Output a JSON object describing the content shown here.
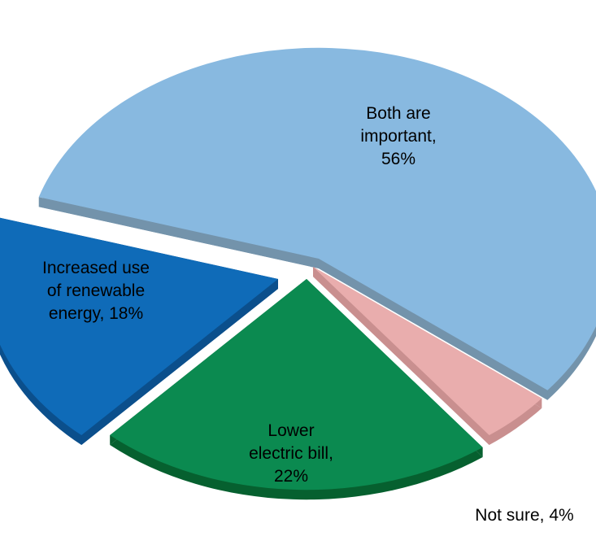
{
  "chart_data": {
    "type": "pie",
    "title": "",
    "categories": [
      "Both are important",
      "Not sure",
      "Lower electric bill",
      "Increased use of renewable energy"
    ],
    "values": [
      56,
      4,
      22,
      18
    ],
    "unit": "%",
    "labels": {
      "both": [
        "Both are",
        "important,",
        "56%"
      ],
      "notsure": [
        "Not sure, 4%"
      ],
      "lower": [
        "Lower",
        "electric bill,",
        "22%"
      ],
      "renewable": [
        "Increased use",
        "of renewable",
        "energy, 18%"
      ]
    },
    "colors": {
      "both": "#88b9e0",
      "both_side": "#7393ab",
      "notsure": "#e9adad",
      "notsure_side": "#c98f8f",
      "lower": "#0b8a50",
      "lower_side": "#06602f",
      "renewable": "#0f6bb8",
      "renewable_side": "#0b4f8c"
    },
    "style": "3d-exploded",
    "legend": "none"
  }
}
